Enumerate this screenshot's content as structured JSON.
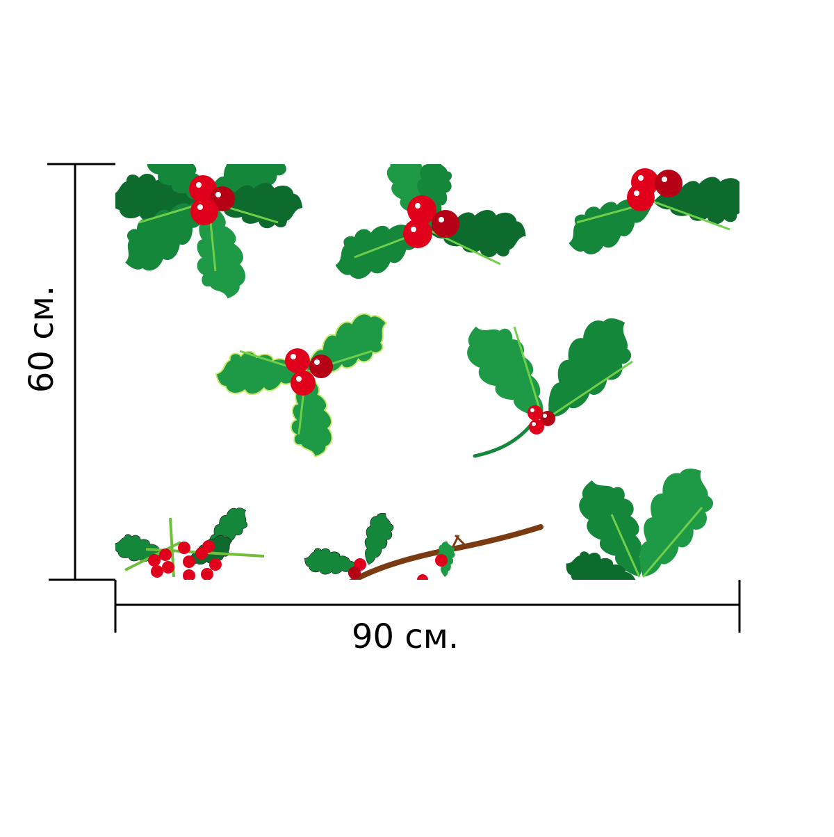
{
  "dimensions": {
    "width_label": "90 см.",
    "height_label": "60 см."
  },
  "artwork": {
    "motif": "holly-leaves-with-red-berries",
    "colors": {
      "leaf_dark": "#0e6b2e",
      "leaf": "#14873b",
      "leaf_light": "#1e9a46",
      "vein": "#6fcf4a",
      "berry": "#e0001b",
      "berry_dark": "#b50015",
      "branch": "#7a3b12",
      "outline": "#111111"
    }
  }
}
